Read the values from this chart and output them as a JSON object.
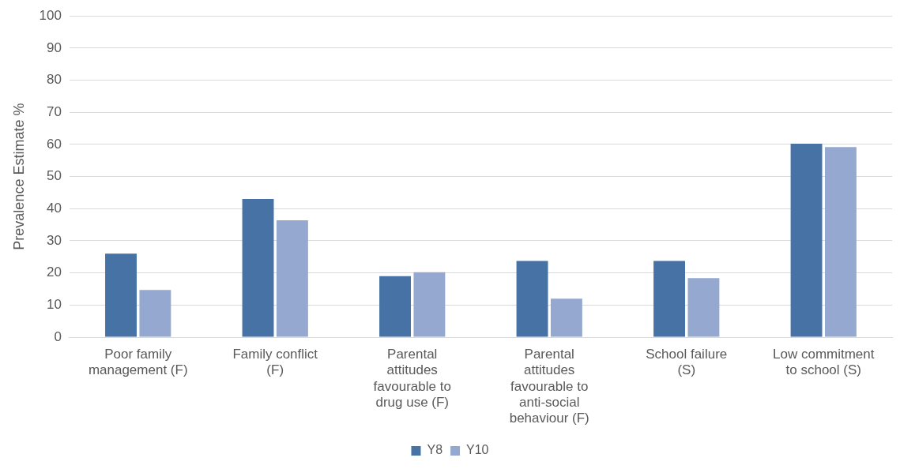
{
  "chart_data": {
    "type": "bar",
    "ylabel": "Prevalence Estimate %",
    "categories": [
      "Poor family management (F)",
      "Family conflict (F)",
      "Parental attitudes favourable to drug use (F)",
      "Parental attitudes favourable to anti-social behaviour (F)",
      "School failure (S)",
      "Low commitment to school (S)"
    ],
    "series": [
      {
        "name": "Y8",
        "color": "#4672a6",
        "values": [
          26,
          43,
          19,
          23.7,
          23.7,
          60.2
        ]
      },
      {
        "name": "Y10",
        "color": "#95a9d0",
        "values": [
          14.7,
          36.4,
          20.2,
          12,
          18.4,
          59.2
        ]
      }
    ],
    "ylim": [
      0,
      100
    ],
    "yticks": [
      0,
      10,
      20,
      30,
      40,
      50,
      60,
      70,
      80,
      90,
      100
    ],
    "grid": "y",
    "legend": "bottom"
  }
}
